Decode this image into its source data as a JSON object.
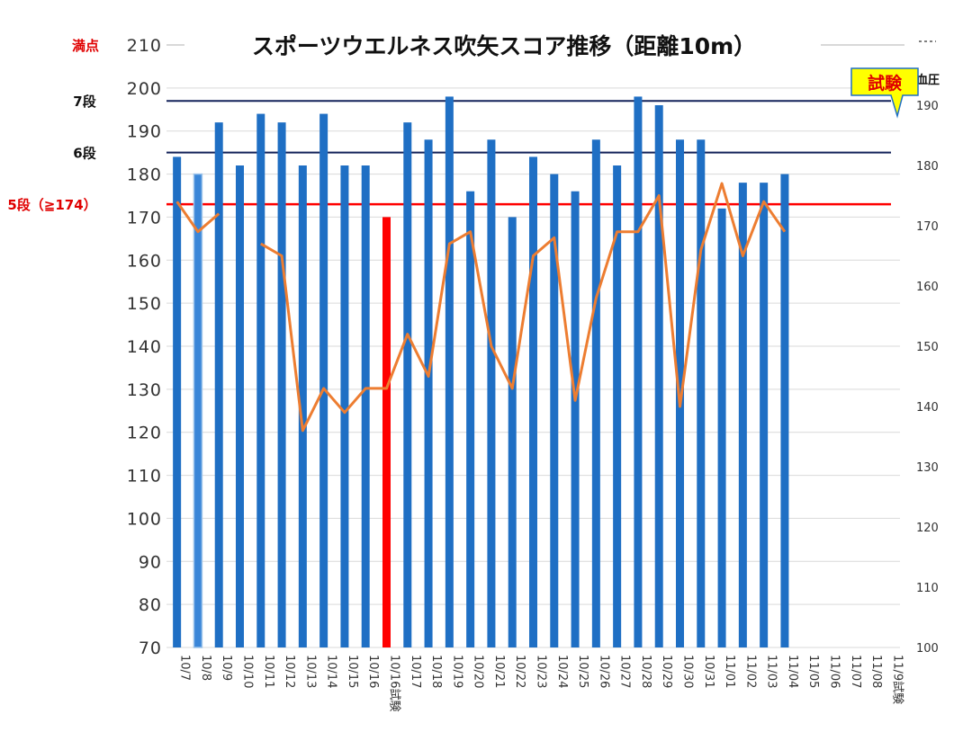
{
  "chart_data": {
    "type": "bar+line",
    "title": "スポーツウエルネス吹矢スコア推移（距離10m）",
    "categories": [
      "10/7",
      "10/8",
      "10/9",
      "10/10",
      "10/11",
      "10/12",
      "10/13",
      "10/14",
      "10/15",
      "10/16",
      "10/16試験",
      "10/17",
      "10/18",
      "10/19",
      "10/20",
      "10/21",
      "10/22",
      "10/23",
      "10/24",
      "10/25",
      "10/26",
      "10/27",
      "10/28",
      "10/29",
      "10/30",
      "10/31",
      "11/01",
      "11/02",
      "11/03",
      "11/04",
      "11/05",
      "11/06",
      "11/07",
      "11/08",
      "11/9試験"
    ],
    "series": [
      {
        "type": "bar",
        "axis": "left",
        "color": "#1f6fc4",
        "values": [
          184,
          180,
          192,
          182,
          194,
          192,
          182,
          194,
          182,
          182,
          170,
          192,
          188,
          198,
          176,
          188,
          170,
          184,
          180,
          176,
          188,
          182,
          198,
          196,
          188,
          188,
          172,
          178,
          178,
          180,
          null,
          null,
          null,
          null,
          null
        ],
        "highlight": {
          "1": "#3a86d8",
          "10": "#ff0000"
        }
      },
      {
        "type": "line",
        "axis": "right",
        "name": "血圧",
        "color": "#ed7d31",
        "values": [
          174,
          169,
          172,
          null,
          167,
          165,
          136,
          143,
          139,
          143,
          143,
          152,
          145,
          167,
          169,
          150,
          143,
          165,
          168,
          141,
          158,
          169,
          169,
          175,
          140,
          166,
          177,
          165,
          174,
          169,
          null,
          null,
          null,
          null,
          null
        ]
      }
    ],
    "y_left": {
      "min": 70,
      "max": 210,
      "step": 10,
      "ticks": [
        70,
        80,
        90,
        100,
        110,
        120,
        130,
        140,
        150,
        160,
        170,
        180,
        190,
        200,
        210
      ]
    },
    "y_right": {
      "label": "血圧",
      "min": 100,
      "max": 200,
      "step": 10,
      "ticks": [
        100,
        110,
        120,
        130,
        140,
        150,
        160,
        170,
        180,
        190
      ]
    },
    "reference_lines": [
      {
        "label": "満点",
        "value": 210,
        "color": "#e00000",
        "line_color": "#cccccc"
      },
      {
        "label": "7段",
        "value": 197,
        "color": "#111111",
        "line_color": "#14235a"
      },
      {
        "label": "6段",
        "value": 185,
        "color": "#111111",
        "line_color": "#14235a"
      },
      {
        "label": "5段（≧174）",
        "value": 173,
        "color": "#e00000",
        "line_color": "#ff0000"
      }
    ],
    "callout": {
      "text": "試験",
      "fill": "#ffff00",
      "text_color": "#e00000",
      "border": "#1f6fc4"
    },
    "grid": true
  }
}
